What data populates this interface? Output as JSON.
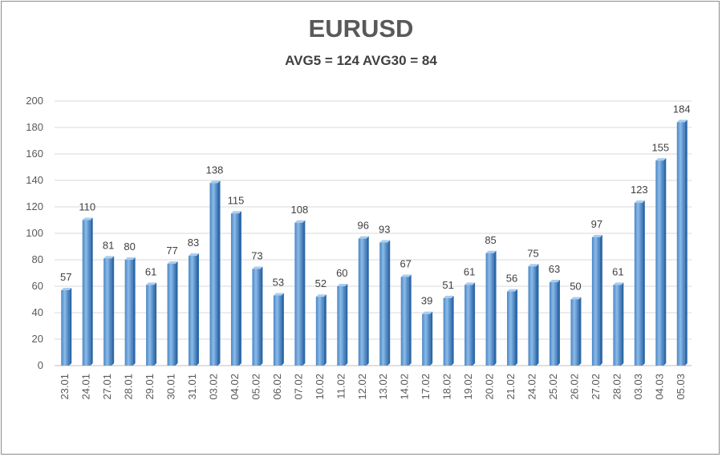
{
  "title": "EURUSD",
  "subtitle": "AVG5 = 124 AVG30 = 84",
  "chart_data": {
    "type": "bar",
    "title": "EURUSD",
    "subtitle": "AVG5 = 124 AVG30 = 84",
    "xlabel": "",
    "ylabel": "",
    "ylim": [
      0,
      200
    ],
    "yticks": [
      0,
      20,
      40,
      60,
      80,
      100,
      120,
      140,
      160,
      180,
      200
    ],
    "grid": true,
    "legend": "none",
    "bar_color": "#5b9bd5",
    "categories": [
      "23.01",
      "24.01",
      "27.01",
      "28.01",
      "29.01",
      "30.01",
      "31.01",
      "03.02",
      "04.02",
      "05.02",
      "06.02",
      "07.02",
      "10.02",
      "11.02",
      "12.02",
      "13.02",
      "14.02",
      "17.02",
      "18.02",
      "19.02",
      "20.02",
      "21.02",
      "24.02",
      "25.02",
      "26.02",
      "27.02",
      "28.02",
      "03.03",
      "04.03",
      "05.03"
    ],
    "values": [
      57,
      110,
      81,
      80,
      61,
      77,
      83,
      138,
      115,
      73,
      53,
      108,
      52,
      60,
      96,
      93,
      67,
      39,
      51,
      61,
      85,
      56,
      75,
      63,
      50,
      97,
      61,
      123,
      155,
      184
    ]
  }
}
